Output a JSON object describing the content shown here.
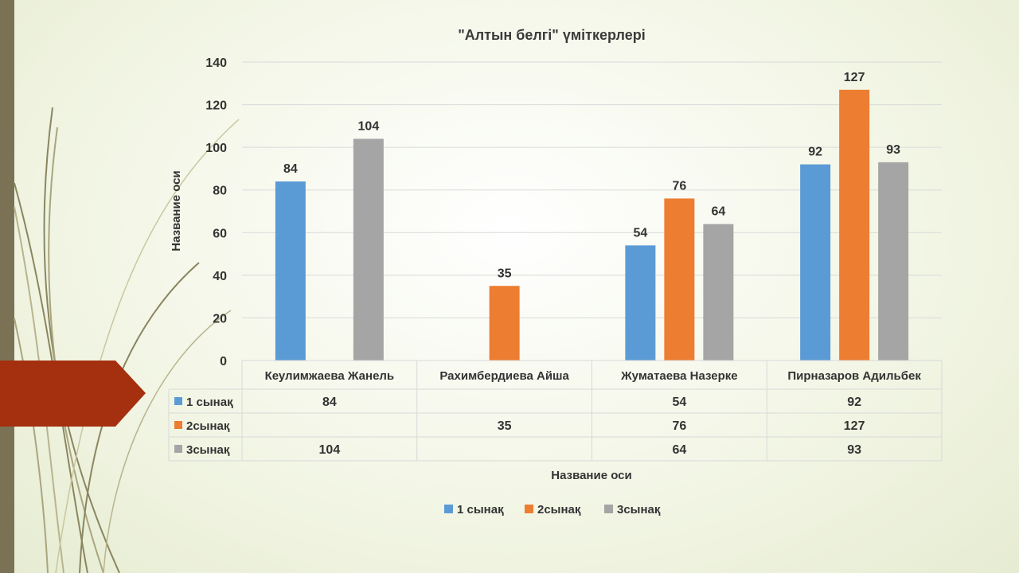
{
  "chart_data": {
    "type": "bar",
    "title": "\"Алтын белгі\" үміткерлері",
    "xlabel": "Название оси",
    "ylabel": "Название оси",
    "ylim": [
      0,
      140
    ],
    "yticks": [
      0,
      20,
      40,
      60,
      80,
      100,
      120,
      140
    ],
    "grid": true,
    "legend_position": "bottom",
    "data_table": true,
    "categories": [
      "Кеулимжаева Жанель",
      "Рахимбердиева Айша",
      "Жуматаева Назерке",
      "Пирназаров Адильбек"
    ],
    "series": [
      {
        "name": "1 сынақ",
        "color": "#5b9bd5",
        "values": [
          84,
          null,
          54,
          92
        ]
      },
      {
        "name": "2сынақ",
        "color": "#ed7d31",
        "values": [
          null,
          35,
          76,
          127
        ]
      },
      {
        "name": "3сынақ",
        "color": "#a5a5a5",
        "values": [
          104,
          null,
          64,
          93
        ]
      }
    ]
  },
  "theme": {
    "left_bar_color": "#7b7256",
    "arrow_color": "#a5300f"
  }
}
